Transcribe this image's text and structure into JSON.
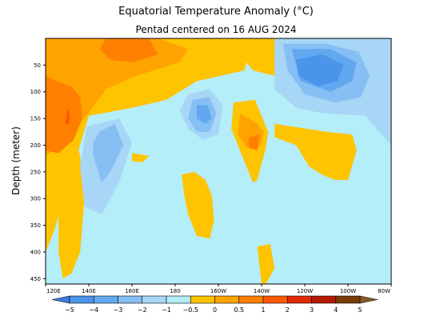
{
  "chart_data": {
    "type": "heatmap",
    "title": "Equatorial Temperature Anomaly (°C)",
    "subtitle": "Pentad centered on 16 AUG 2024",
    "xlabel": "",
    "ylabel": "Depth (meter)",
    "x_ticks": [
      "120E",
      "140E",
      "160E",
      "180",
      "160W",
      "140W",
      "120W",
      "100W",
      "80W"
    ],
    "x_values": [
      120,
      140,
      160,
      180,
      200,
      220,
      240,
      260,
      280
    ],
    "x_range": [
      120,
      280
    ],
    "y_ticks": [
      "50",
      "100",
      "150",
      "200",
      "250",
      "300",
      "350",
      "400",
      "450"
    ],
    "y_values": [
      50,
      100,
      150,
      200,
      250,
      300,
      350,
      400,
      450
    ],
    "y_range": [
      0,
      460
    ],
    "y_inverted": true,
    "colorbar": {
      "labels": [
        "−5",
        "−4",
        "−3",
        "−2",
        "−1",
        "−0.5",
        "0",
        "0.5",
        "1",
        "2",
        "3",
        "4",
        "5"
      ],
      "colors": [
        "#3b7de0",
        "#4a94ea",
        "#62a8f0",
        "#86bff3",
        "#a8d6f6",
        "#b4eef8",
        "#ffc400",
        "#ffa300",
        "#ff8000",
        "#ff5a00",
        "#e12a00",
        "#b51a00",
        "#7a3c00",
        "#8b5a2b"
      ]
    },
    "regions": [
      {
        "level": 0.5,
        "lon": [
          120,
          136,
          132,
          152,
          176,
          206,
          216,
          212,
          190,
          176,
          160,
          140,
          124,
          120
        ],
        "depth": [
          0,
          0,
          0,
          0,
          0,
          0,
          0,
          60,
          80,
          115,
          130,
          145,
          360,
          400
        ]
      },
      {
        "level": 0.5,
        "lon": [
          212,
          232,
          252,
          254,
          246,
          226,
          216,
          212
        ],
        "depth": [
          0,
          0,
          0,
          30,
          60,
          70,
          60,
          40
        ]
      },
      {
        "level": 0.5,
        "lon": [
          226,
          250,
          262,
          264,
          260,
          254,
          248,
          242,
          236,
          226
        ],
        "depth": [
          160,
          175,
          180,
          210,
          265,
          265,
          255,
          240,
          200,
          185
        ]
      },
      {
        "level": 0.5,
        "lon": [
          207,
          217,
          223,
          222,
          218,
          216,
          212,
          206
        ],
        "depth": [
          120,
          115,
          175,
          205,
          265,
          270,
          230,
          170
        ]
      },
      {
        "level": 0.5,
        "lon": [
          126,
          132,
          136,
          138,
          136,
          132,
          128,
          126
        ],
        "depth": [
          160,
          160,
          220,
          300,
          400,
          440,
          450,
          400
        ]
      },
      {
        "level": 0.5,
        "lon": [
          183,
          189,
          194,
          197,
          198,
          196,
          190,
          186,
          184
        ],
        "depth": [
          255,
          250,
          265,
          295,
          340,
          375,
          370,
          330,
          290
        ]
      },
      {
        "level": 0.5,
        "lon": [
          160,
          168,
          165,
          160
        ],
        "depth": [
          215,
          220,
          232,
          230
        ]
      },
      {
        "level": 0.5,
        "lon": [
          218,
          224,
          226,
          222,
          220
        ],
        "depth": [
          390,
          385,
          430,
          460,
          460
        ]
      },
      {
        "level": 1,
        "lon": [
          120,
          156,
          172,
          186,
          182,
          162,
          148,
          138,
          124,
          120
        ],
        "depth": [
          0,
          0,
          0,
          20,
          45,
          70,
          95,
          150,
          210,
          220
        ]
      },
      {
        "level": 1,
        "lon": [
          210,
          218,
          221,
          219,
          213,
          209
        ],
        "depth": [
          140,
          160,
          175,
          205,
          205,
          180
        ]
      },
      {
        "level": 2,
        "lon": [
          148,
          168,
          172,
          160,
          150,
          145
        ],
        "depth": [
          0,
          0,
          30,
          45,
          40,
          20
        ]
      },
      {
        "level": 2,
        "lon": [
          120,
          125,
          132,
          136,
          137,
          133,
          126,
          120
        ],
        "depth": [
          70,
          80,
          90,
          110,
          150,
          190,
          215,
          210
        ]
      },
      {
        "level": 2,
        "lon": [
          214,
          219,
          218,
          214
        ],
        "depth": [
          185,
          180,
          210,
          205
        ]
      },
      {
        "level": 2,
        "lon": [
          274,
          279,
          280,
          278,
          274,
          272
        ],
        "depth": [
          0,
          0,
          20,
          25,
          20,
          10
        ]
      },
      {
        "level": 3,
        "lon": [
          130,
          131,
          131,
          129
        ],
        "depth": [
          135,
          130,
          160,
          162
        ]
      },
      {
        "level": -0.5,
        "lon": [
          139,
          154,
          160,
          154,
          146,
          138,
          136
        ],
        "depth": [
          165,
          150,
          195,
          270,
          330,
          315,
          240
        ]
      },
      {
        "level": -0.5,
        "lon": [
          186,
          196,
          202,
          200,
          193,
          186,
          182
        ],
        "depth": [
          105,
          95,
          125,
          180,
          190,
          170,
          135
        ]
      },
      {
        "level": -0.5,
        "lon": [
          226,
          248,
          270,
          280,
          280,
          268,
          248,
          236,
          226
        ],
        "depth": [
          0,
          0,
          0,
          0,
          200,
          145,
          140,
          130,
          95
        ]
      },
      {
        "level": -1,
        "lon": [
          145,
          152,
          156,
          150,
          146,
          142,
          142
        ],
        "depth": [
          175,
          160,
          200,
          250,
          270,
          220,
          195
        ]
      },
      {
        "level": -1,
        "lon": [
          188,
          196,
          199,
          196,
          190,
          186
        ],
        "depth": [
          115,
          110,
          140,
          175,
          175,
          150
        ]
      },
      {
        "level": -1,
        "lon": [
          230,
          250,
          265,
          270,
          266,
          254,
          240,
          232
        ],
        "depth": [
          10,
          10,
          25,
          70,
          110,
          120,
          105,
          60
        ]
      },
      {
        "level": -2,
        "lon": [
          234,
          252,
          264,
          262,
          252,
          238
        ],
        "depth": [
          20,
          20,
          45,
          80,
          100,
          80
        ]
      },
      {
        "level": -2,
        "lon": [
          190,
          195,
          197,
          194,
          190
        ],
        "depth": [
          125,
          125,
          150,
          160,
          150
        ]
      },
      {
        "level": -3,
        "lon": [
          236,
          248,
          258,
          255,
          246,
          237
        ],
        "depth": [
          40,
          30,
          50,
          80,
          90,
          70
        ]
      }
    ]
  }
}
